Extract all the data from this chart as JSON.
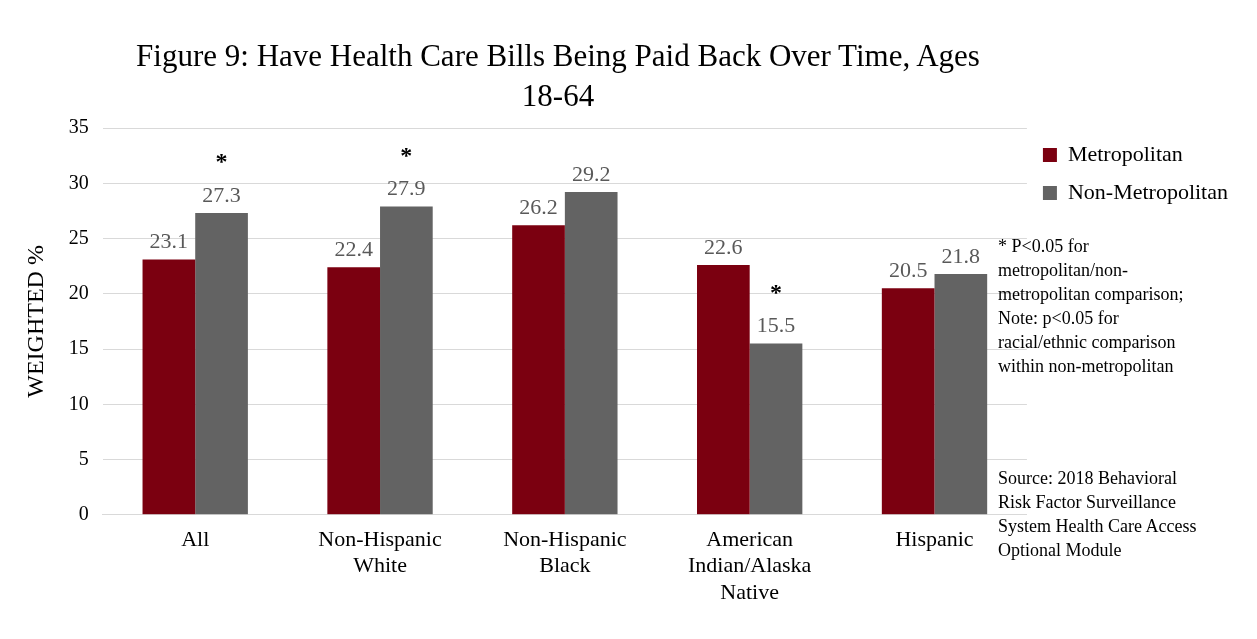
{
  "chart_data": {
    "type": "bar",
    "title": "Figure 9: Have Health Care Bills Being Paid Back Over Time, Ages 18-64",
    "ylabel": "WEIGHTED %",
    "categories": [
      "All",
      "Non-Hispanic White",
      "Non-Hispanic Black",
      "American Indian/Alaska Native",
      "Hispanic"
    ],
    "series": [
      {
        "name": "Metropolitan",
        "color": "#7b0010",
        "values": [
          23.1,
          22.4,
          26.2,
          22.6,
          20.5
        ]
      },
      {
        "name": "Non-Metropolitan",
        "color": "#636363",
        "values": [
          27.3,
          27.9,
          29.2,
          15.5,
          21.8
        ]
      }
    ],
    "ylim": [
      0,
      35
    ],
    "yticks": [
      0,
      5,
      10,
      15,
      20,
      25,
      30,
      35
    ],
    "grid": "y",
    "legend": "top right",
    "data_labels": true,
    "annotations": [
      {
        "text": "*",
        "x": "All",
        "y": 27.3
      },
      {
        "text": "*",
        "x": "Non-Hispanic White",
        "y": 27.9
      },
      {
        "text": "*",
        "x": "American Indian/Alaska Native",
        "y": 15.5
      },
      "* P<0.05 for metropolitan/non-metropolitan comparison; Note: p<0.05 for racial/ethnic comparison within non-metropolitan",
      "Source: 2018 Behavioral Risk Factor Surveillance System Health Care Access Optional Module"
    ]
  }
}
